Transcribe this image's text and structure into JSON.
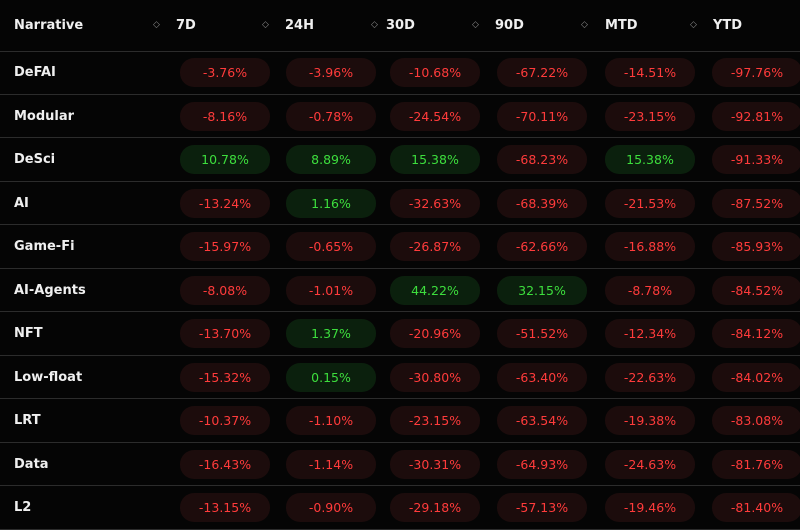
{
  "columns": [
    {
      "key": "narrative",
      "label": "Narrative"
    },
    {
      "key": "d7",
      "label": "7D"
    },
    {
      "key": "h24",
      "label": "24H"
    },
    {
      "key": "d30",
      "label": "30D"
    },
    {
      "key": "d90",
      "label": "90D"
    },
    {
      "key": "mtd",
      "label": "MTD"
    },
    {
      "key": "ytd",
      "label": "YTD"
    }
  ],
  "sort_icon": "◇",
  "colors": {
    "negative_text": "#ff3b3b",
    "positive_text": "#3dde3d",
    "negative_bg": "#1c0c0c",
    "positive_bg": "#0b200d"
  },
  "rows": [
    {
      "name": "DeFAI",
      "values": [
        "-3.76%",
        "-3.96%",
        "-10.68%",
        "-67.22%",
        "-14.51%",
        "-97.76%"
      ]
    },
    {
      "name": "Modular",
      "values": [
        "-8.16%",
        "-0.78%",
        "-24.54%",
        "-70.11%",
        "-23.15%",
        "-92.81%"
      ]
    },
    {
      "name": "DeSci",
      "values": [
        "10.78%",
        "8.89%",
        "15.38%",
        "-68.23%",
        "15.38%",
        "-91.33%"
      ]
    },
    {
      "name": "AI",
      "values": [
        "-13.24%",
        "1.16%",
        "-32.63%",
        "-68.39%",
        "-21.53%",
        "-87.52%"
      ]
    },
    {
      "name": "Game-Fi",
      "values": [
        "-15.97%",
        "-0.65%",
        "-26.87%",
        "-62.66%",
        "-16.88%",
        "-85.93%"
      ]
    },
    {
      "name": "AI-Agents",
      "values": [
        "-8.08%",
        "-1.01%",
        "44.22%",
        "32.15%",
        "-8.78%",
        "-84.52%"
      ]
    },
    {
      "name": "NFT",
      "values": [
        "-13.70%",
        "1.37%",
        "-20.96%",
        "-51.52%",
        "-12.34%",
        "-84.12%"
      ]
    },
    {
      "name": "Low-float",
      "values": [
        "-15.32%",
        "0.15%",
        "-30.80%",
        "-63.40%",
        "-22.63%",
        "-84.02%"
      ]
    },
    {
      "name": "LRT",
      "values": [
        "-10.37%",
        "-1.10%",
        "-23.15%",
        "-63.54%",
        "-19.38%",
        "-83.08%"
      ]
    },
    {
      "name": "Data",
      "values": [
        "-16.43%",
        "-1.14%",
        "-30.31%",
        "-64.93%",
        "-24.63%",
        "-81.76%"
      ]
    },
    {
      "name": "L2",
      "values": [
        "-13.15%",
        "-0.90%",
        "-29.18%",
        "-57.13%",
        "-19.46%",
        "-81.40%"
      ]
    }
  ]
}
